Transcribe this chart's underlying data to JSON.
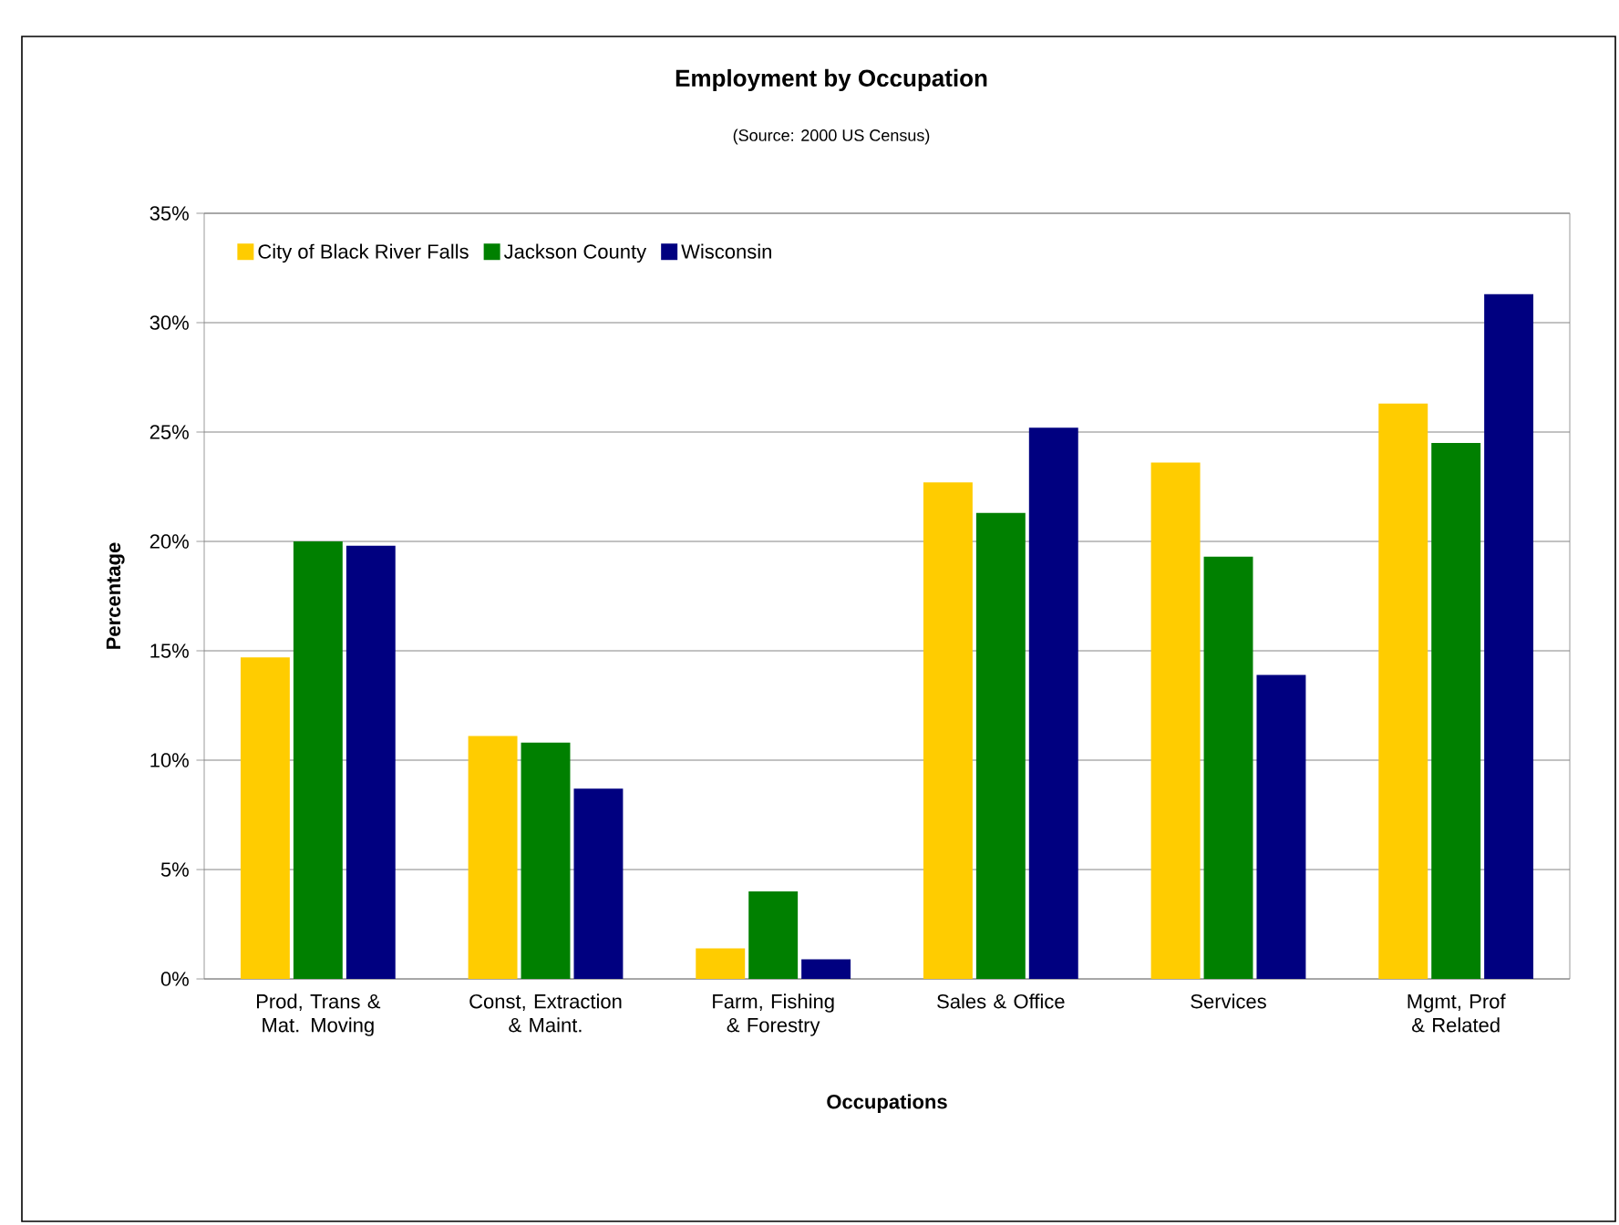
{
  "chart_data": {
    "type": "bar",
    "title": "Employment by Occupation",
    "subtitle": "(Source: 2000 US Census)",
    "xlabel": "Occupations",
    "ylabel": "Percentage",
    "categories": [
      "Prod, Trans & Mat. Moving",
      "Const, Extraction & Maint.",
      "Farm, Fishing & Forestry",
      "Sales & Office",
      "Services",
      "Mgmt, Prof & Related"
    ],
    "series": [
      {
        "name": "City of Black River Falls",
        "color": "#ffcc00",
        "values": [
          14.7,
          11.1,
          1.4,
          22.7,
          23.6,
          26.3
        ]
      },
      {
        "name": "Jackson County",
        "color": "#008000",
        "values": [
          20.0,
          10.8,
          4.0,
          21.3,
          19.3,
          24.5
        ]
      },
      {
        "name": "Wisconsin",
        "color": "#000080",
        "values": [
          19.8,
          8.7,
          0.9,
          25.2,
          13.9,
          31.3
        ]
      }
    ],
    "ylim": [
      0,
      35
    ],
    "yticks": [
      {
        "value": 0,
        "label": "0%"
      },
      {
        "value": 5,
        "label": "5%"
      },
      {
        "value": 10,
        "label": "10%"
      },
      {
        "value": 15,
        "label": "15%"
      },
      {
        "value": 20,
        "label": "20%"
      },
      {
        "value": 25,
        "label": "25%"
      },
      {
        "value": 30,
        "label": "30%"
      },
      {
        "value": 35,
        "label": "35%"
      }
    ],
    "grid": "y",
    "legend": "top left"
  }
}
